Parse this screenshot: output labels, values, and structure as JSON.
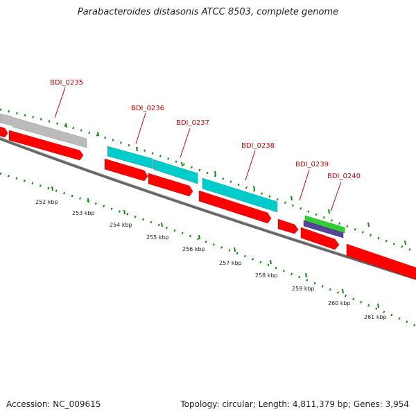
{
  "title": "Parabacteroides distasonis ATCC 8503, complete genome",
  "footer": {
    "accession": "Accession: NC_009615",
    "summary": "Topology: circular; Length: 4,811,379 bp; Genes: 3,954"
  },
  "gene_labels": [
    "BDI_0235",
    "BDI_0236",
    "BDI_0237",
    "BDI_0238",
    "BDI_0239",
    "BDI_0240"
  ],
  "kbp_labels": [
    "252 kbp",
    "253 kbp",
    "254 kbp",
    "255 kbp",
    "256 kbp",
    "257 kbp",
    "258 kbp",
    "259 kbp",
    "260 kbp",
    "261 kbp"
  ],
  "colors": {
    "cds_red": "#ff0000",
    "rna_cyan": "#00cccc",
    "grey_feature": "#bbbbbb",
    "green_feature": "#33cc33",
    "purple_feature": "#554499",
    "backbone": "#777777",
    "tick_green": "#118811",
    "label_red": "#cc0000"
  }
}
